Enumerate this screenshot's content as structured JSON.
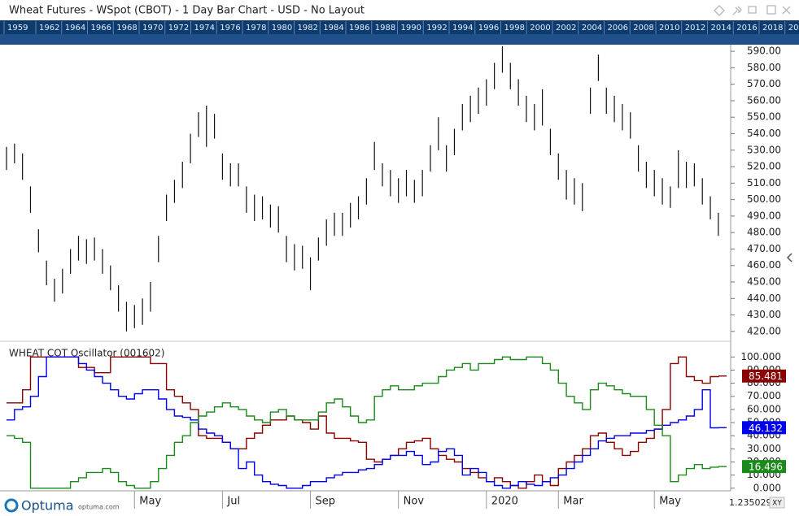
{
  "window": {
    "title": "Wheat Futures - WSpot (CBOT) - 1 Day Bar Chart - USD - No Layout"
  },
  "timeline": {
    "years": [
      "1959",
      "1962",
      "1964",
      "1966",
      "1968",
      "1970",
      "1972",
      "1974",
      "1976",
      "1978",
      "1980",
      "1982",
      "1984",
      "1986",
      "1988",
      "1990",
      "1992",
      "1994",
      "1996",
      "1998",
      "2000",
      "2002",
      "2004",
      "2006",
      "2008",
      "2010",
      "2012",
      "2014",
      "2016",
      "2018",
      "20"
    ]
  },
  "footer": {
    "brand": "Optuma",
    "site": "optuma.com",
    "zoom": "1.2350295",
    "mode": "XY"
  },
  "chart_data": [
    {
      "type": "bar",
      "color": "#111111",
      "high": [
        532,
        534,
        528,
        508,
        482,
        463,
        452,
        458,
        470,
        478,
        476,
        477,
        470,
        460,
        448,
        438,
        436,
        440,
        450,
        478,
        503,
        512,
        523,
        540,
        553,
        557,
        552,
        528,
        522,
        522,
        508,
        503,
        502,
        497,
        496,
        478,
        473,
        472,
        465,
        477,
        488,
        492,
        492,
        498,
        502,
        513,
        535,
        522,
        518,
        513,
        518,
        512,
        518,
        533,
        550,
        533,
        543,
        558,
        563,
        568,
        573,
        583,
        593,
        583,
        573,
        563,
        558,
        567,
        543,
        528,
        518,
        513,
        510,
        568,
        588,
        568,
        563,
        558,
        553,
        533,
        523,
        518,
        513,
        508,
        530,
        523,
        522,
        513,
        502,
        492
      ],
      "low": [
        518,
        522,
        512,
        492,
        468,
        448,
        438,
        443,
        455,
        463,
        461,
        463,
        455,
        445,
        432,
        420,
        422,
        424,
        432,
        462,
        487,
        498,
        507,
        522,
        538,
        532,
        537,
        512,
        508,
        508,
        492,
        487,
        488,
        483,
        480,
        462,
        457,
        458,
        445,
        463,
        472,
        478,
        478,
        483,
        488,
        497,
        518,
        508,
        502,
        498,
        502,
        498,
        502,
        517,
        530,
        517,
        527,
        542,
        547,
        552,
        557,
        567,
        577,
        567,
        557,
        547,
        542,
        545,
        527,
        512,
        500,
        497,
        493,
        552,
        572,
        552,
        547,
        542,
        537,
        517,
        507,
        502,
        497,
        495,
        507,
        507,
        508,
        497,
        488,
        478
      ],
      "ylim": [
        415,
        594
      ],
      "yticks": [
        {
          "value": 420,
          "label": "420.00"
        },
        {
          "value": 430,
          "label": "430.00"
        },
        {
          "value": 440,
          "label": "440.00"
        },
        {
          "value": 450,
          "label": "450.00"
        },
        {
          "value": 460,
          "label": "460.00"
        },
        {
          "value": 470,
          "label": "470.00"
        },
        {
          "value": 480,
          "label": "480.00"
        },
        {
          "value": 490,
          "label": "490.00"
        },
        {
          "value": 500,
          "label": "500.00"
        },
        {
          "value": 510,
          "label": "510.00"
        },
        {
          "value": 520,
          "label": "520.00"
        },
        {
          "value": 530,
          "label": "530.00"
        },
        {
          "value": 540,
          "label": "540.00"
        },
        {
          "value": 550,
          "label": "550.00"
        },
        {
          "value": 560,
          "label": "560.00"
        },
        {
          "value": 570,
          "label": "570.00"
        },
        {
          "value": 580,
          "label": "580.00"
        },
        {
          "value": 590,
          "label": "590.00"
        }
      ]
    },
    {
      "type": "line",
      "title": "WHEAT COT Oscillator (001602)",
      "categories": [
        null,
        null,
        null,
        null,
        null,
        null,
        null,
        null,
        null,
        null,
        null,
        null,
        null,
        null,
        null,
        null,
        "May",
        null,
        null,
        null,
        null,
        null,
        null,
        null,
        null,
        null,
        null,
        "Jul",
        null,
        null,
        null,
        null,
        null,
        null,
        null,
        null,
        null,
        null,
        "Sep",
        null,
        null,
        null,
        null,
        null,
        null,
        null,
        null,
        null,
        null,
        "Nov",
        null,
        null,
        null,
        null,
        null,
        null,
        null,
        null,
        null,
        null,
        "2020",
        null,
        null,
        null,
        null,
        null,
        null,
        null,
        null,
        "Mar",
        null,
        null,
        null,
        null,
        null,
        null,
        null,
        null,
        null,
        null,
        null,
        "May",
        null,
        null,
        null,
        null,
        null,
        null,
        null,
        null
      ],
      "series": [
        {
          "name": "red",
          "color": "#8b0000",
          "values": [
            65,
            65,
            75,
            100,
            100,
            100,
            100,
            100,
            100,
            92,
            92,
            88,
            88,
            100,
            100,
            100,
            100,
            100,
            95,
            95,
            75,
            70,
            65,
            60,
            40,
            38,
            38,
            35,
            30,
            30,
            38,
            42,
            48,
            52,
            52,
            55,
            52,
            50,
            45,
            55,
            42,
            38,
            38,
            36,
            35,
            22,
            20,
            22,
            25,
            30,
            35,
            36,
            38,
            30,
            25,
            22,
            20,
            15,
            12,
            8,
            5,
            8,
            5,
            2,
            0,
            5,
            10,
            5,
            2,
            15,
            20,
            25,
            30,
            40,
            42,
            35,
            30,
            25,
            28,
            35,
            38,
            45,
            60,
            95,
            100,
            85,
            82,
            80,
            85,
            85.481
          ]
        },
        {
          "name": "blue",
          "color": "#0000ee",
          "values": [
            52,
            60,
            62,
            70,
            85,
            100,
            100,
            100,
            100,
            95,
            90,
            85,
            80,
            75,
            70,
            68,
            72,
            75,
            75,
            68,
            60,
            55,
            54,
            52,
            45,
            42,
            40,
            35,
            30,
            15,
            20,
            10,
            5,
            3,
            2,
            0,
            0,
            2,
            5,
            5,
            8,
            10,
            12,
            12,
            14,
            15,
            18,
            22,
            25,
            25,
            28,
            25,
            18,
            20,
            28,
            30,
            25,
            10,
            15,
            12,
            5,
            2,
            0,
            2,
            5,
            3,
            2,
            5,
            8,
            10,
            15,
            20,
            25,
            30,
            36,
            38,
            40,
            40,
            42,
            42,
            44,
            45,
            48,
            50,
            52,
            55,
            60,
            75,
            46,
            46.132
          ]
        },
        {
          "name": "green",
          "color": "#1a8a1a",
          "values": [
            40,
            38,
            35,
            0,
            0,
            0,
            0,
            0,
            5,
            8,
            12,
            12,
            15,
            12,
            5,
            2,
            0,
            0,
            5,
            15,
            25,
            35,
            40,
            50,
            55,
            58,
            62,
            65,
            62,
            60,
            55,
            52,
            50,
            58,
            60,
            55,
            52,
            52,
            52,
            58,
            65,
            68,
            62,
            55,
            50,
            52,
            70,
            75,
            78,
            75,
            75,
            78,
            80,
            80,
            85,
            90,
            92,
            95,
            90,
            95,
            95,
            98,
            100,
            98,
            98,
            100,
            100,
            95,
            90,
            80,
            70,
            65,
            60,
            75,
            80,
            78,
            75,
            72,
            70,
            70,
            60,
            48,
            40,
            5,
            10,
            15,
            18,
            15,
            16,
            16.496
          ]
        }
      ],
      "ylim": [
        -2,
        107
      ],
      "yticks": [
        {
          "value": 0,
          "label": "0.000"
        },
        {
          "value": 10,
          "label": "10.000"
        },
        {
          "value": 20,
          "label": "20.000"
        },
        {
          "value": 30,
          "label": "30.000"
        },
        {
          "value": 40,
          "label": "40.000"
        },
        {
          "value": 50,
          "label": "50.000"
        },
        {
          "value": 60,
          "label": "60.000"
        },
        {
          "value": 70,
          "label": "70.000"
        },
        {
          "value": 80,
          "label": "80.000"
        },
        {
          "value": 90,
          "label": "90.000"
        },
        {
          "value": 100,
          "label": "100.000"
        }
      ]
    }
  ]
}
